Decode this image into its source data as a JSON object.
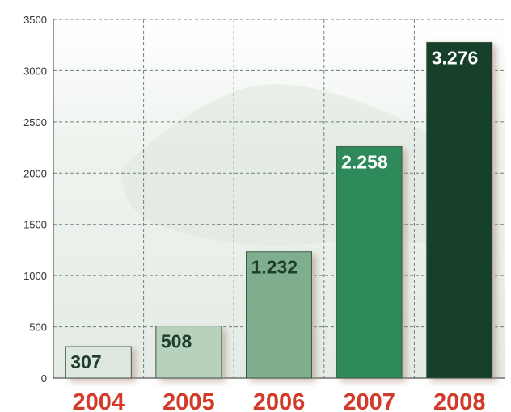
{
  "chart_data": {
    "type": "bar",
    "categories": [
      "2004",
      "2005",
      "2006",
      "2007",
      "2008"
    ],
    "values": [
      307,
      508,
      1232,
      2258,
      3276
    ],
    "data_labels": [
      "307",
      "508",
      "1.232",
      "2.258",
      "3.276"
    ],
    "bar_colors": [
      "#dfe8df",
      "#b6d1bc",
      "#7fae8f",
      "#2f8a5a",
      "#123f2b"
    ],
    "data_label_colors": [
      "#1e3d2a",
      "#1e3d2a",
      "#1e3d2a",
      "#ffffff",
      "#ffffff"
    ],
    "category_label_color": "#d23b2a",
    "title": "",
    "xlabel": "",
    "ylabel": "",
    "ylim": [
      0,
      3500
    ],
    "yticks": [
      0,
      500,
      1000,
      1500,
      2000,
      2500,
      3000,
      3500
    ],
    "grid": true,
    "legend": "none"
  }
}
